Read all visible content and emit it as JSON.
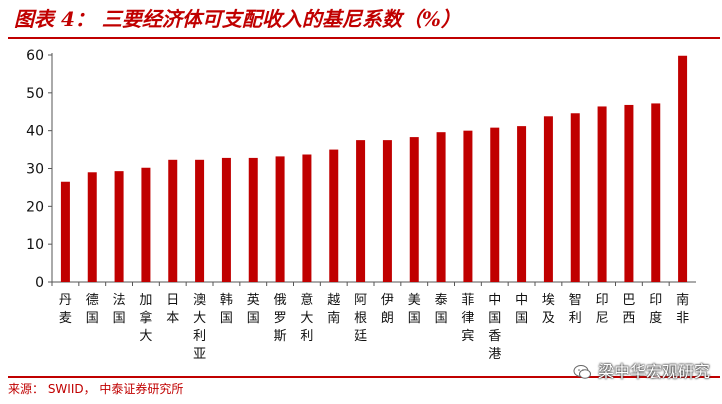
{
  "header": {
    "title": "图表 4： 三要经济体可支配收入的基尼系数（%）"
  },
  "chart_data": {
    "type": "bar",
    "categories": [
      "丹麦",
      "德国",
      "法国",
      "加拿大",
      "日本",
      "澳大利亚",
      "韩国",
      "英国",
      "俄罗斯",
      "意大利",
      "越南",
      "阿根廷",
      "伊朗",
      "美国",
      "泰国",
      "菲律宾",
      "中国香港",
      "中国",
      "埃及",
      "智利",
      "印尼",
      "巴西",
      "印度",
      "南非"
    ],
    "values": [
      26.5,
      29,
      29.3,
      30.2,
      32.3,
      32.3,
      32.8,
      32.8,
      33.2,
      33.7,
      35,
      37.5,
      37.5,
      38.3,
      39.6,
      40,
      40.8,
      41.2,
      43.8,
      44.6,
      46.4,
      46.8,
      47.2,
      59.8
    ],
    "ylim": [
      0,
      60
    ],
    "yticks": [
      "0",
      "10",
      "20",
      "30",
      "40",
      "50",
      "60"
    ],
    "grid": false,
    "legend": "none",
    "bar_color": "#c00000"
  },
  "footer": {
    "source": "来源： SWIID， 中泰证券研究所",
    "watermark": "梁中华宏观研究"
  },
  "colors": {
    "accent": "#c00000",
    "axis": "#555555"
  },
  "icons": {
    "watermark": "wechat-bubble-icon"
  }
}
